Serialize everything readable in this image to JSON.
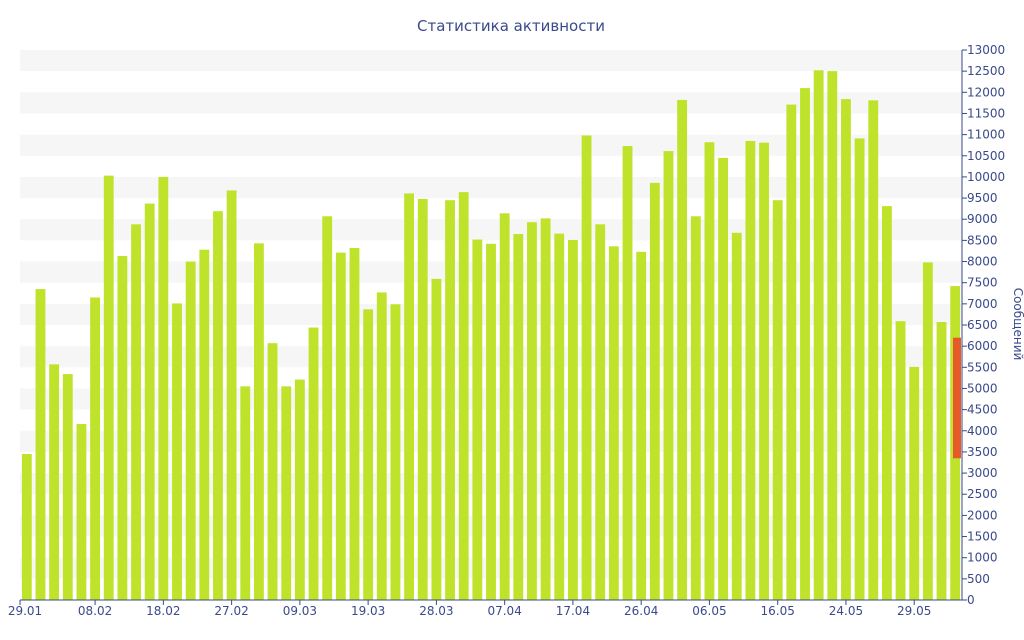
{
  "chart_data": {
    "type": "bar",
    "title": "Статистика активности",
    "ylabel": "Сообщений",
    "xlabel": "",
    "ylim": [
      0,
      13000
    ],
    "ytick_step": 500,
    "grid": "horizontal-bands",
    "legend": "none",
    "x_tick_labels": [
      "29.01",
      "08.02",
      "18.02",
      "27.02",
      "09.03",
      "19.03",
      "28.03",
      "07.04",
      "17.04",
      "26.04",
      "06.05",
      "16.05",
      "24.05",
      "29.05"
    ],
    "x_tick_label_bar_index": [
      0,
      5,
      10,
      15,
      20,
      25,
      30,
      35,
      40,
      45,
      50,
      55,
      60,
      65
    ],
    "values": [
      3450,
      7350,
      5570,
      5340,
      4160,
      7150,
      10030,
      8130,
      8880,
      9370,
      10000,
      7010,
      8000,
      8280,
      9190,
      9680,
      5050,
      8430,
      6070,
      5050,
      5210,
      6440,
      9070,
      8210,
      8320,
      6870,
      7270,
      6990,
      9610,
      9480,
      7590,
      9450,
      9640,
      8520,
      8420,
      9140,
      8650,
      8930,
      9020,
      8660,
      8510,
      10980,
      8880,
      8360,
      10730,
      8230,
      9860,
      10610,
      11820,
      9070,
      10820,
      10450,
      8680,
      10850,
      10810,
      9450,
      11710,
      12100,
      12520,
      12500,
      11840,
      10910,
      11810,
      9310,
      6590,
      5510,
      7980,
      6570,
      7420
    ],
    "marker": {
      "low": 3350,
      "high": 6200
    },
    "colors": {
      "bar": "#bfe22a",
      "marker": "#e65a2a",
      "axis": "#3a4a8a",
      "band": "#f6f6f6"
    }
  }
}
